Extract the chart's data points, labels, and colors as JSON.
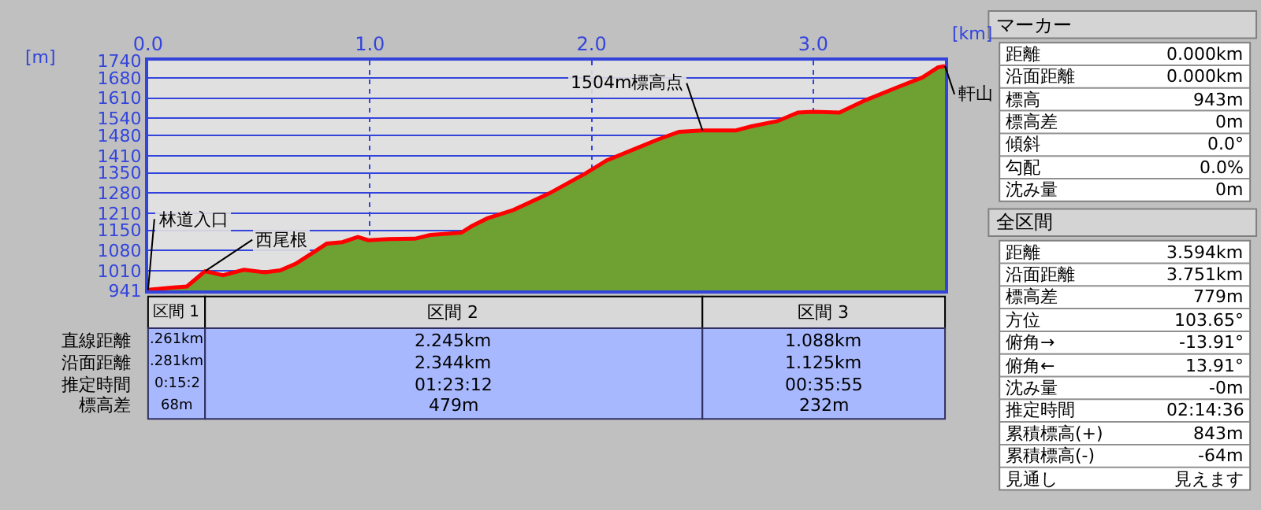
{
  "chart_data": [
    {
      "type": "area",
      "xlabel": "[km]",
      "ylabel": "[m]",
      "x": [
        0,
        0.105,
        0.175,
        0.257,
        0.338,
        0.432,
        0.526,
        0.596,
        0.666,
        0.736,
        0.806,
        0.876,
        0.946,
        0.993,
        1.086,
        1.203,
        1.273,
        1.413,
        1.46,
        1.53,
        1.647,
        1.81,
        1.974,
        2.067,
        2.207,
        2.301,
        2.395,
        2.5,
        2.651,
        2.721,
        2.838,
        2.931,
        3.001,
        3.118,
        3.235,
        3.376,
        3.492,
        3.562,
        3.594
      ],
      "series": [
        {
          "color": "#6fa032",
          "values": [
            943,
            951,
            955,
            1008,
            994,
            1013,
            1004,
            1011,
            1034,
            1069,
            1104,
            1109,
            1127,
            1116,
            1120,
            1121,
            1134,
            1142,
            1165,
            1192,
            1221,
            1279,
            1349,
            1393,
            1437,
            1467,
            1493,
            1498,
            1498,
            1512,
            1530,
            1560,
            1563,
            1560,
            1603,
            1647,
            1682,
            1717,
            1722
          ]
        },
        {
          "type": "line",
          "color": "#ff0000",
          "values": [
            943,
            951,
            955,
            1008,
            994,
            1013,
            1004,
            1011,
            1034,
            1069,
            1104,
            1109,
            1127,
            1116,
            1120,
            1121,
            1134,
            1142,
            1165,
            1192,
            1221,
            1279,
            1349,
            1393,
            1437,
            1467,
            1493,
            1498,
            1498,
            1512,
            1530,
            1560,
            1563,
            1560,
            1603,
            1647,
            1682,
            1717,
            1722
          ]
        }
      ],
      "xlim": [
        0,
        3.594
      ],
      "ylim": [
        941,
        1740
      ],
      "xticks": [
        {
          "value": 0,
          "label": "0.0"
        },
        {
          "value": 1,
          "label": "1.0"
        },
        {
          "value": 2,
          "label": "2.0"
        },
        {
          "value": 3,
          "label": "3.0"
        }
      ],
      "yticks": [
        941,
        1010,
        1080,
        1150,
        1210,
        1280,
        1350,
        1410,
        1480,
        1540,
        1610,
        1680,
        1740
      ],
      "grid": true,
      "annotations": [
        {
          "text": "林道入口",
          "x": 0,
          "y": 943
        },
        {
          "text": "西尾根",
          "x": 0.257,
          "y": 1008
        },
        {
          "text": "1504m標高点",
          "x": 2.5,
          "y": 1498
        },
        {
          "text": "軒山",
          "x": 3.594,
          "y": 1722
        }
      ]
    },
    {
      "type": "other",
      "categories": [
        "区間 1",
        "区間 2",
        "区間 3"
      ],
      "y_categories": [
        "直線距離",
        "沿面距離",
        "推定時間",
        "標高差"
      ],
      "cell_labels": [
        [
          ".261km",
          "2.245km",
          "1.088km"
        ],
        [
          ".281km",
          "2.344km",
          "1.125km"
        ],
        [
          "0:15:2",
          "01:23:12",
          "00:35:55"
        ],
        [
          "68m",
          "479m",
          "232m"
        ]
      ]
    },
    {
      "type": "other",
      "title": "マーカー",
      "y_categories": [
        "距離",
        "沿面距離",
        "標高",
        "標高差",
        "傾斜",
        "勾配",
        "沈み量"
      ],
      "cell_labels": [
        [
          "0.000km"
        ],
        [
          "0.000km"
        ],
        [
          "943m"
        ],
        [
          "0m"
        ],
        [
          "0.0°"
        ],
        [
          "0.0%"
        ],
        [
          "0m"
        ]
      ]
    },
    {
      "type": "other",
      "title": "全区間",
      "y_categories": [
        "距離",
        "沿面距離",
        "標高差",
        "方位",
        "俯角→",
        "俯角←",
        "沈み量",
        "推定時間",
        "累積標高(+)",
        "累積標高(-)",
        "見通し"
      ],
      "cell_labels": [
        [
          "3.594km"
        ],
        [
          "3.751km"
        ],
        [
          "779m"
        ],
        [
          "103.65°"
        ],
        [
          "-13.91°"
        ],
        [
          "13.91°"
        ],
        [
          "-0m"
        ],
        [
          "02:14:36"
        ],
        [
          "843m"
        ],
        [
          "-64m"
        ],
        [
          "見えます"
        ]
      ]
    }
  ]
}
